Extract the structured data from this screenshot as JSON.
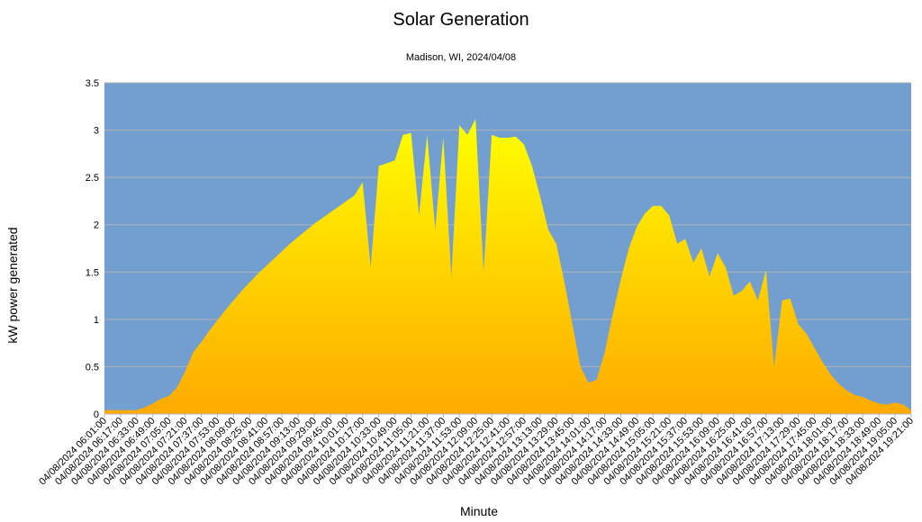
{
  "chart_data": {
    "type": "area",
    "title": "Solar Generation",
    "subtitle": "Madison, WI, 2024/04/08",
    "x_label": "Minute",
    "y_label": "kW power generated",
    "categories": [
      "04/08/2024 06:01:00",
      null,
      "04/08/2024 06:17:00",
      null,
      "04/08/2024 06:33:00",
      null,
      "04/08/2024 06:49:00",
      null,
      "04/08/2024 07:05:00",
      null,
      "04/08/2024 07:21:00",
      null,
      "04/08/2024 07:37:00",
      null,
      "04/08/2024 07:53:00",
      null,
      "04/08/2024 08:09:00",
      null,
      "04/08/2024 08:25:00",
      null,
      "04/08/2024 08:41:00",
      null,
      "04/08/2024 08:57:00",
      null,
      "04/08/2024 09:13:00",
      null,
      "04/08/2024 09:29:00",
      null,
      "04/08/2024 09:45:00",
      null,
      "04/08/2024 10:01:00",
      null,
      "04/08/2024 10:17:00",
      null,
      "04/08/2024 10:33:00",
      null,
      "04/08/2024 10:49:00",
      null,
      "04/08/2024 11:05:00",
      null,
      "04/08/2024 11:21:00",
      null,
      "04/08/2024 11:37:00",
      null,
      "04/08/2024 11:53:00",
      null,
      "04/08/2024 12:09:00",
      null,
      "04/08/2024 12:25:00",
      null,
      "04/08/2024 12:41:00",
      null,
      "04/08/2024 12:57:00",
      null,
      "04/08/2024 13:13:00",
      null,
      "04/08/2024 13:29:00",
      null,
      "04/08/2024 13:45:00",
      null,
      "04/08/2024 14:01:00",
      null,
      "04/08/2024 14:17:00",
      null,
      "04/08/2024 14:33:00",
      null,
      "04/08/2024 14:49:00",
      null,
      "04/08/2024 15:05:00",
      null,
      "04/08/2024 15:21:00",
      null,
      "04/08/2024 15:37:00",
      null,
      "04/08/2024 15:53:00",
      null,
      "04/08/2024 16:09:00",
      null,
      "04/08/2024 16:25:00",
      null,
      "04/08/2024 16:41:00",
      null,
      "04/08/2024 16:57:00",
      null,
      "04/08/2024 17:13:00",
      null,
      "04/08/2024 17:29:00",
      null,
      "04/08/2024 17:45:00",
      null,
      "04/08/2024 18:01:00",
      null,
      "04/08/2024 18:17:00",
      null,
      "04/08/2024 18:33:00",
      null,
      "04/08/2024 18:49:00",
      null,
      "04/08/2024 19:05:00",
      null,
      "04/08/2024 19:21:00"
    ],
    "values": [
      0.04,
      0.04,
      0.04,
      0.04,
      0.04,
      0.07,
      0.11,
      0.16,
      0.19,
      0.28,
      0.45,
      0.65,
      0.76,
      0.88,
      0.99,
      1.1,
      1.2,
      1.3,
      1.39,
      1.48,
      1.56,
      1.64,
      1.72,
      1.8,
      1.87,
      1.94,
      2.01,
      2.07,
      2.13,
      2.19,
      2.25,
      2.31,
      2.45,
      1.55,
      2.62,
      2.65,
      2.68,
      2.95,
      2.97,
      2.1,
      2.95,
      1.95,
      2.92,
      1.45,
      3.05,
      2.95,
      3.12,
      1.5,
      2.95,
      2.92,
      2.92,
      2.93,
      2.85,
      2.62,
      2.3,
      1.95,
      1.8,
      1.4,
      0.95,
      0.5,
      0.33,
      0.36,
      0.65,
      1.05,
      1.42,
      1.75,
      1.98,
      2.12,
      2.2,
      2.2,
      2.1,
      1.8,
      1.85,
      1.6,
      1.75,
      1.45,
      1.7,
      1.55,
      1.25,
      1.3,
      1.4,
      1.2,
      1.52,
      0.5,
      1.2,
      1.22,
      0.95,
      0.85,
      0.7,
      0.55,
      0.42,
      0.32,
      0.25,
      0.2,
      0.18,
      0.14,
      0.11,
      0.1,
      0.12,
      0.1,
      0.04
    ],
    "ylim": [
      0,
      3.5
    ],
    "yticks": [
      0,
      0.5,
      1,
      1.5,
      2,
      2.5,
      3,
      3.5
    ],
    "grid": true,
    "background": "#729fcf",
    "fill_top": "#ffff00",
    "fill_bottom": "#ffaa00"
  }
}
